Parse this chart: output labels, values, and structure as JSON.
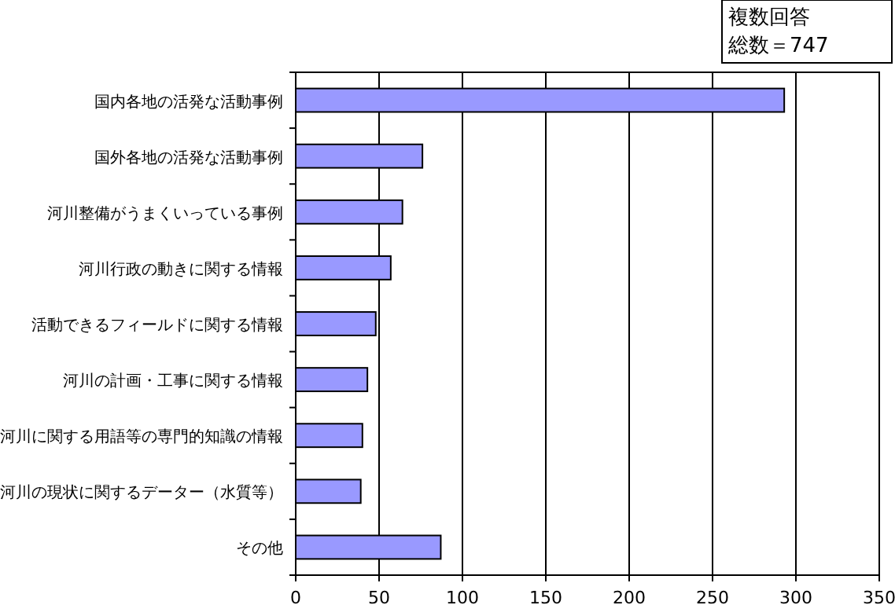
{
  "chart_data": {
    "type": "bar",
    "orientation": "horizontal",
    "categories": [
      "国内各地の活発な活動事例",
      "国外各地の活発な活動事例",
      "河川整備がうまくいっている事例",
      "河川行政の動きに関する情報",
      "活動できるフィールドに関する情報",
      "河川の計画・工事に関する情報",
      "河川に関する用語等の専門的知識の情報",
      "河川の現状に関するデーター（水質等）",
      "その他"
    ],
    "values": [
      293,
      76,
      64,
      57,
      48,
      43,
      40,
      39,
      87
    ],
    "color": "#9999ff",
    "xlim": [
      0,
      350
    ],
    "xticks": [
      0,
      50,
      100,
      150,
      200,
      250,
      300,
      350
    ],
    "grid": "x",
    "annotations": [
      "複数回答",
      "総数＝747"
    ]
  }
}
